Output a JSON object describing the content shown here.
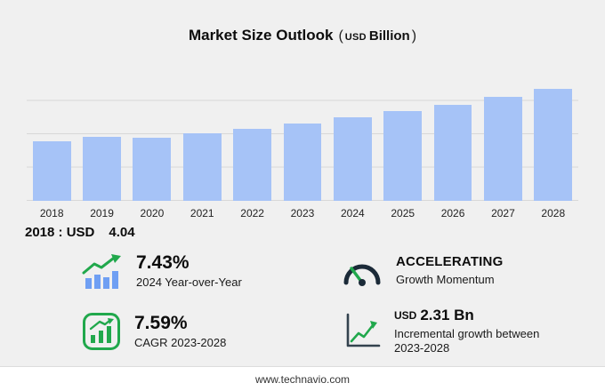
{
  "title": {
    "main": "Market Size Outlook",
    "open_paren": "(",
    "currency": "USD",
    "unit": "Billion",
    "close_paren": ")"
  },
  "chart_data": {
    "type": "bar",
    "categories": [
      "2018",
      "2019",
      "2020",
      "2021",
      "2022",
      "2023",
      "2024",
      "2025",
      "2026",
      "2027",
      "2028"
    ],
    "values": [
      4.04,
      4.33,
      4.24,
      4.57,
      4.89,
      5.23,
      5.62,
      6.05,
      6.51,
      7.01,
      7.54
    ],
    "title": "Market Size Outlook (USD Billion)",
    "xlabel": "",
    "ylabel": "USD Billion",
    "ylim": [
      0,
      9
    ],
    "grid": true,
    "legend": false,
    "bar_color": "#a6c3f7"
  },
  "annotation": {
    "label": "2018 : USD",
    "value": "4.04"
  },
  "stats": {
    "yoy": {
      "value": "7.43%",
      "label": "2024 Year-over-Year",
      "icon": "bar-growth-icon"
    },
    "momentum": {
      "value": "ACCELERATING",
      "label": "Growth Momentum",
      "icon": "gauge-icon"
    },
    "cagr": {
      "value": "7.59%",
      "label": "CAGR 2023-2028",
      "icon": "green-bar-chart-icon"
    },
    "incremental": {
      "prefix": "USD",
      "value": "2.31 Bn",
      "label": "Incremental growth between 2023-2028",
      "icon": "line-chart-icon"
    }
  },
  "footer": {
    "url": "www.technavio.com"
  },
  "colors": {
    "background": "#f0f0f0",
    "bar": "#a6c3f7",
    "icon_bar_blue": "#6f9ff3",
    "accent_green": "#21a84c",
    "gauge_dark": "#1b2a38",
    "gridline": "#d8d8d8"
  }
}
